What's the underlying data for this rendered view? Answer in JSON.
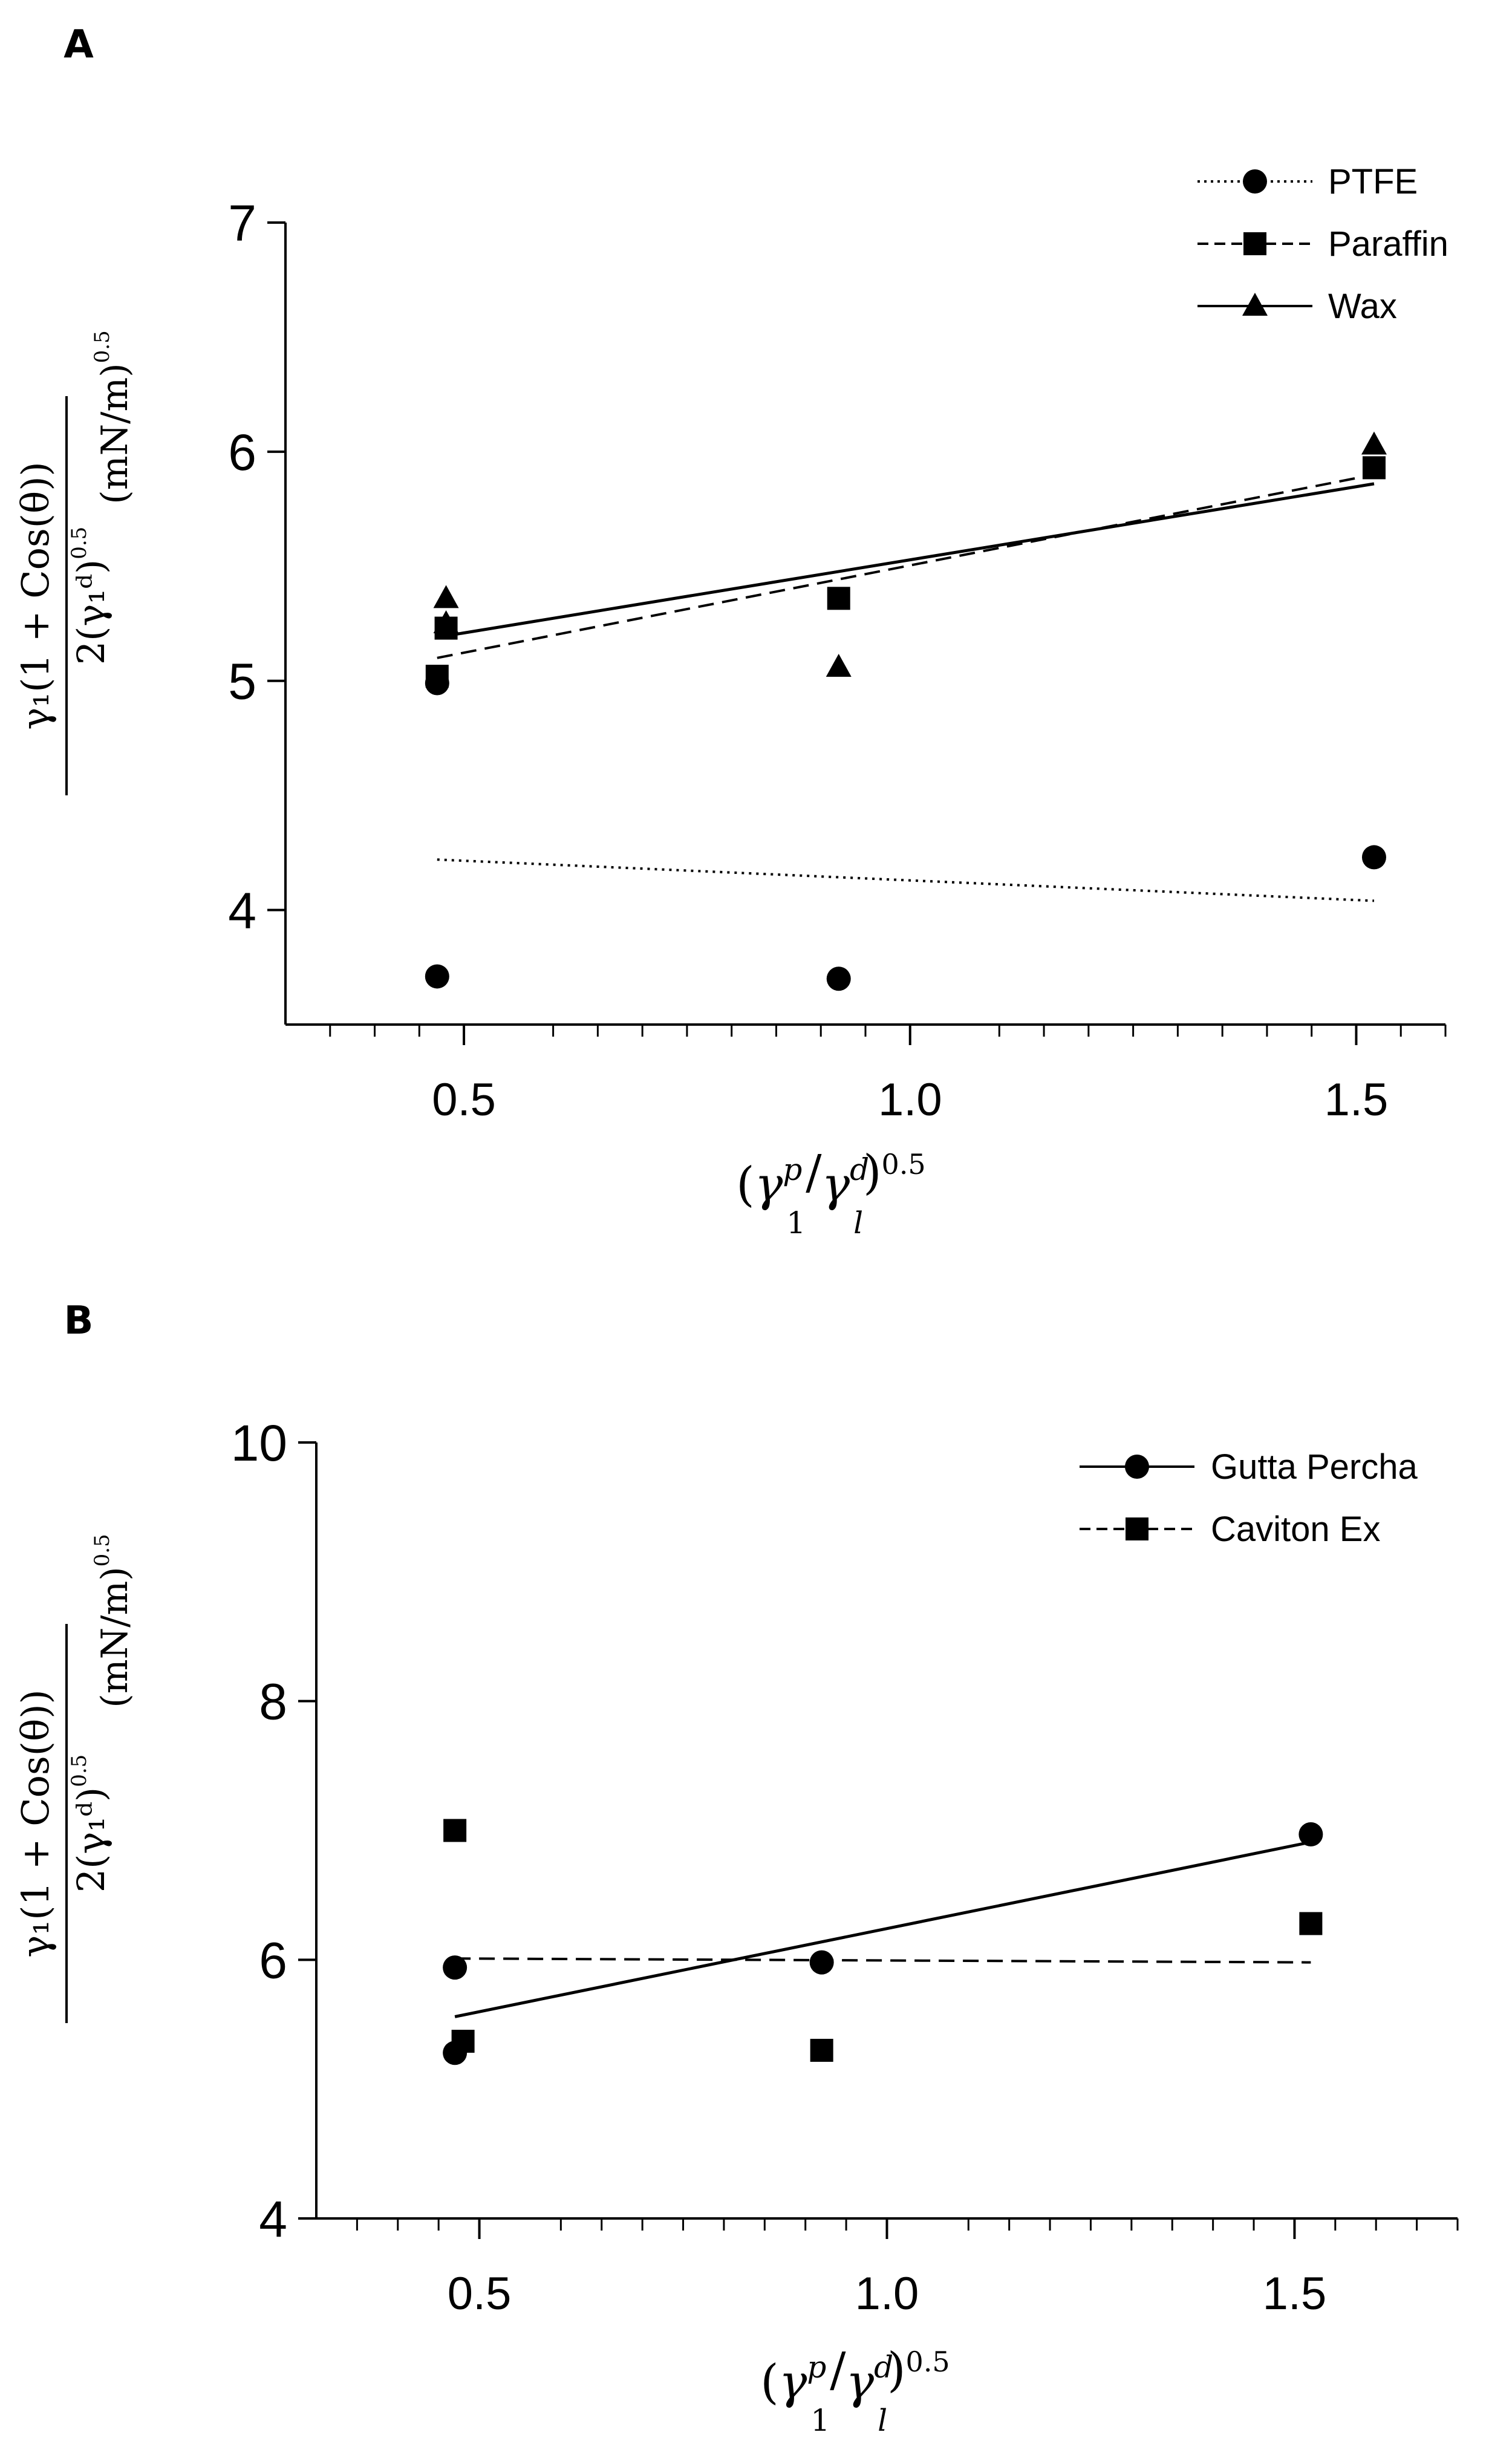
{
  "chart_data": [
    {
      "panel": "A",
      "type": "scatter",
      "xlabel": {
        "base": "γ",
        "sub": "1",
        "sup": "p",
        "sep": "/",
        "base2": "γ",
        "sub2": "l",
        "sup2": "d",
        "exponent": "0.5"
      },
      "ylabel": {
        "numerator": "γ₁(1 + Cos(θ))",
        "denominator": "2(γ₁ᵈ)",
        "den_exponent": "0.5",
        "units": "(mN/m)",
        "units_exponent": "0.5"
      },
      "xlim": [
        0.3,
        1.6
      ],
      "ylim": [
        3.5,
        7
      ],
      "xticks": [
        0.5,
        1.0,
        1.5
      ],
      "xtick_labels": [
        "0.5",
        "1.0",
        "1.5"
      ],
      "yticks": [
        4,
        5,
        6,
        7
      ],
      "ytick_labels": [
        "4",
        "5",
        "6",
        "7"
      ],
      "legend_position": "top-right",
      "series": [
        {
          "name": "PTFE",
          "marker": "circle",
          "line": "dotted",
          "points": [
            [
              0.47,
              3.71
            ],
            [
              0.47,
              4.99
            ],
            [
              0.92,
              3.7
            ],
            [
              1.52,
              4.23
            ]
          ],
          "fit": [
            [
              0.47,
              4.22
            ],
            [
              1.52,
              4.04
            ]
          ]
        },
        {
          "name": "Paraffin",
          "marker": "square",
          "line": "dashed",
          "points": [
            [
              0.47,
              5.02
            ],
            [
              0.48,
              5.23
            ],
            [
              0.92,
              5.36
            ],
            [
              1.52,
              5.93
            ]
          ],
          "fit": [
            [
              0.47,
              5.1
            ],
            [
              1.52,
              5.9
            ]
          ]
        },
        {
          "name": "Wax",
          "marker": "triangle",
          "line": "solid",
          "points": [
            [
              0.48,
              5.25
            ],
            [
              0.48,
              5.36
            ],
            [
              0.92,
              5.06
            ],
            [
              1.52,
              6.03
            ]
          ],
          "fit": [
            [
              0.47,
              5.19
            ],
            [
              1.52,
              5.86
            ]
          ]
        }
      ]
    },
    {
      "panel": "B",
      "type": "scatter",
      "xlabel": {
        "base": "γ",
        "sub": "1",
        "sup": "p",
        "sep": "/",
        "base2": "γ",
        "sub2": "l",
        "sup2": "d",
        "exponent": "0.5"
      },
      "ylabel": {
        "numerator": "γ₁(1 + Cos(θ))",
        "denominator": "2(γ₁ᵈ)",
        "den_exponent": "0.5",
        "units": "(mN/m)",
        "units_exponent": "0.5"
      },
      "xlim": [
        0.3,
        1.7
      ],
      "ylim": [
        4,
        10
      ],
      "xticks": [
        0.5,
        1.0,
        1.5
      ],
      "xtick_labels": [
        "0.5",
        "1.0",
        "1.5"
      ],
      "yticks": [
        4,
        6,
        8,
        10
      ],
      "ytick_labels": [
        "4",
        "6",
        "8",
        "10"
      ],
      "legend_position": "top-right",
      "series": [
        {
          "name": "Gutta Percha",
          "marker": "circle",
          "line": "solid",
          "points": [
            [
              0.47,
              5.28
            ],
            [
              0.47,
              5.94
            ],
            [
              0.92,
              5.98
            ],
            [
              1.52,
              6.97
            ]
          ],
          "fit": [
            [
              0.47,
              5.56
            ],
            [
              1.52,
              6.91
            ]
          ]
        },
        {
          "name": "Caviton Ex",
          "marker": "square",
          "line": "dashed",
          "points": [
            [
              0.47,
              7.0
            ],
            [
              0.48,
              5.37
            ],
            [
              0.92,
              5.3
            ],
            [
              1.52,
              6.28
            ]
          ],
          "fit": [
            [
              0.47,
              6.01
            ],
            [
              1.52,
              5.98
            ]
          ]
        }
      ]
    }
  ]
}
